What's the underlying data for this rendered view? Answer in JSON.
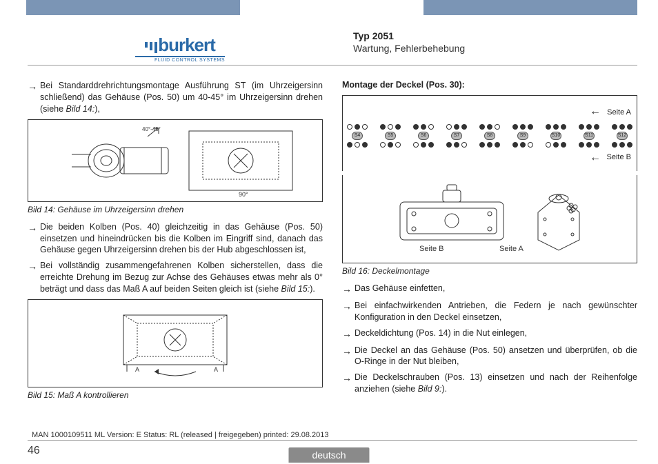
{
  "header": {
    "logo_text": "burkert",
    "logo_sub": "FLUID CONTROL SYSTEMS",
    "typ": "Typ 2051",
    "subtitle": "Wartung, Fehlerbehebung"
  },
  "left": {
    "p1": "Bei Standarddrehrichtungsmontage Ausführung ST (im Uhrzeigersinn schließend) das Gehäuse (Pos. 50) um 40-45° im Uhrzeigersinn drehen (siehe ",
    "p1_ref": "Bild 14:",
    "p1_end": "),",
    "cap14": "Bild 14:  Gehäuse im Uhrzeigersinn drehen",
    "p2": "Die beiden Kolben (Pos. 40) gleichzeitig in das Gehäuse (Pos. 50) einsetzen und hineindrücken bis die Kolben im Eingriff sind, danach das Gehäuse gegen Uhrzeigersinn drehen bis der Hub abgeschlossen ist,",
    "p3": "Bei vollständig zusammengefahrenen Kolben sicherstellen, dass die erreichte Drehung im Bezug zur Achse des Gehäuses etwas mehr als 0° beträgt und dass das Maß A auf beiden Seiten gleich ist (siehe ",
    "p3_ref": "Bild 15:",
    "p3_end": ").",
    "cap15": "Bild 15:  Maß A kontrollieren",
    "fig14_angle1": "40°-45°",
    "fig14_angle2": "90°"
  },
  "right": {
    "h": "Montage der Deckel (Pos. 30):",
    "sideA": "Seite A",
    "sideB": "Seite B",
    "springs": [
      "S4",
      "S5",
      "S6",
      "S7",
      "S8",
      "S9",
      "S10",
      "S11",
      "S12"
    ],
    "cap16": "Bild 16:  Deckelmontage",
    "r1": "Das Gehäuse einfetten,",
    "r2": "Bei einfachwirkenden Antrieben, die Federn je nach gewünschter Konfiguration in den Deckel einsetzen,",
    "r3": "Deckeldichtung (Pos. 14) in die Nut einlegen,",
    "r4": "Die Deckel an das Gehäuse (Pos. 50) ansetzen und überprüfen, ob die O-Ringe in der Nut bleiben,",
    "r5": "Die Deckelschrauben (Pos. 13) einsetzen und nach der Reihenfolge anziehen (siehe ",
    "r5_ref": "Bild 9:",
    "r5_end": ")."
  },
  "footer": {
    "version": "MAN 1000109511 ML Version: E Status: RL (released | freigegeben) printed: 29.08.2013",
    "page": "46",
    "lang": "deutsch"
  },
  "colors": {
    "bar": "#7b95b5",
    "brand": "#2a6aa8",
    "tab": "#8a8a8a"
  }
}
